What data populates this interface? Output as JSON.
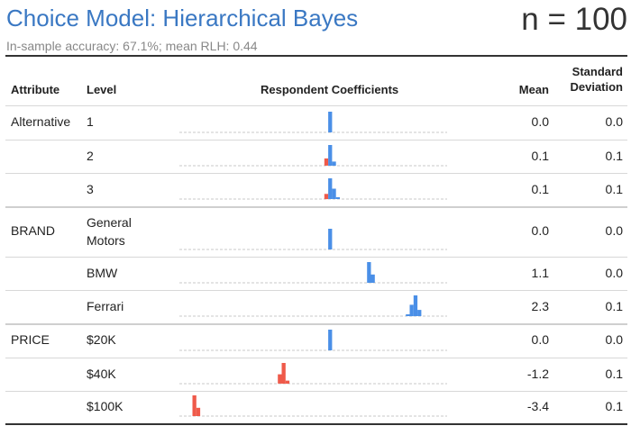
{
  "header": {
    "title": "Choice Model: Hierarchical Bayes",
    "subtitle": "In-sample accuracy: 67.1%; mean RLH: 0.44",
    "n_label": "n = 100"
  },
  "columns": {
    "attribute": "Attribute",
    "level": "Level",
    "coefficients": "Respondent Coefficients",
    "mean": "Mean",
    "sd_line1": "Standard",
    "sd_line2": "Deviation"
  },
  "colors": {
    "positive": "#4a8fe7",
    "negative": "#ef5a4a",
    "dashed_baseline": "#c8c8c8"
  },
  "chart_data": {
    "type": "table",
    "x_range": [
      -3.9,
      3.0
    ],
    "rows": [
      {
        "attribute": "Alternative",
        "level": "1",
        "mean": "0.0",
        "sd": "0.0",
        "histogram": [
          {
            "x": 0.0,
            "h": 1.0
          }
        ]
      },
      {
        "attribute": "",
        "level": "2",
        "mean": "0.1",
        "sd": "0.1",
        "histogram": [
          {
            "x": -0.1,
            "h": 0.35
          },
          {
            "x": 0.0,
            "h": 1.0
          },
          {
            "x": 0.1,
            "h": 0.2
          }
        ]
      },
      {
        "attribute": "",
        "level": "3",
        "mean": "0.1",
        "sd": "0.1",
        "histogram": [
          {
            "x": -0.1,
            "h": 0.25
          },
          {
            "x": 0.0,
            "h": 1.0
          },
          {
            "x": 0.1,
            "h": 0.5
          },
          {
            "x": 0.2,
            "h": 0.05
          }
        ]
      },
      {
        "attribute": "BRAND",
        "level": "General Motors",
        "mean": "0.0",
        "sd": "0.0",
        "histogram": [
          {
            "x": 0.0,
            "h": 1.0
          }
        ]
      },
      {
        "attribute": "",
        "level": "BMW",
        "mean": "1.1",
        "sd": "0.0",
        "histogram": [
          {
            "x": 1.0,
            "h": 1.0
          },
          {
            "x": 1.1,
            "h": 0.4
          }
        ]
      },
      {
        "attribute": "",
        "level": "Ferrari",
        "mean": "2.3",
        "sd": "0.1",
        "histogram": [
          {
            "x": 2.0,
            "h": 0.05
          },
          {
            "x": 2.1,
            "h": 0.55
          },
          {
            "x": 2.2,
            "h": 1.0
          },
          {
            "x": 2.3,
            "h": 0.3
          }
        ]
      },
      {
        "attribute": "PRICE",
        "level": "$20K",
        "mean": "0.0",
        "sd": "0.0",
        "histogram": [
          {
            "x": 0.0,
            "h": 1.0
          }
        ]
      },
      {
        "attribute": "",
        "level": "$40K",
        "mean": "-1.2",
        "sd": "0.1",
        "histogram": [
          {
            "x": -1.3,
            "h": 0.45
          },
          {
            "x": -1.2,
            "h": 1.0
          },
          {
            "x": -1.1,
            "h": 0.15
          }
        ]
      },
      {
        "attribute": "",
        "level": "$100K",
        "mean": "-3.4",
        "sd": "0.1",
        "histogram": [
          {
            "x": -3.5,
            "h": 1.0
          },
          {
            "x": -3.4,
            "h": 0.4
          }
        ]
      }
    ]
  }
}
